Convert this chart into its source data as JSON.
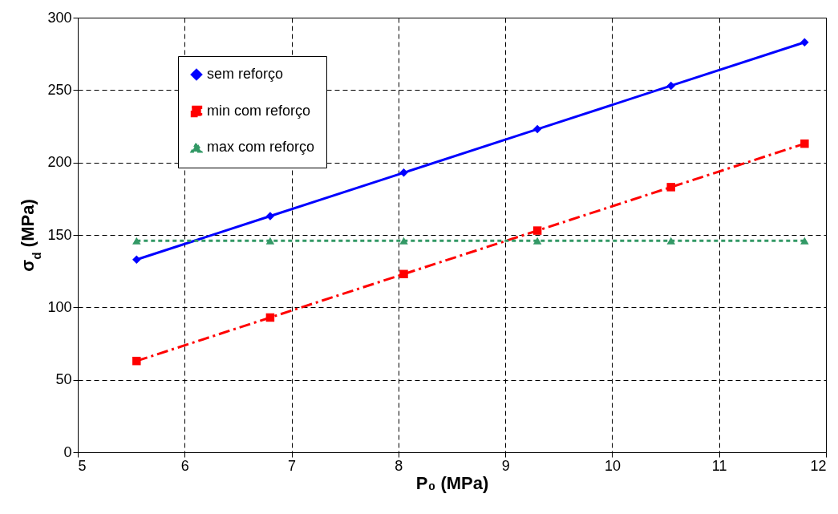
{
  "chart_data": {
    "type": "line",
    "xlabel": "P₀ (MPa)",
    "ylabel": "σ$_{d}$ (MPa)",
    "xlim": [
      5,
      12
    ],
    "xticks": [
      5,
      6,
      7,
      8,
      9,
      10,
      11,
      12
    ],
    "ylim": [
      0,
      300
    ],
    "yticks": [
      0,
      50,
      100,
      150,
      200,
      250,
      300
    ],
    "grid": true,
    "legend": "top left",
    "series": [
      {
        "name": "sem reforço",
        "color": "#0000ff",
        "marker": "diamond",
        "line_style": "solid",
        "x": [
          5.55,
          6.8,
          8.05,
          9.3,
          10.55,
          11.8
        ],
        "values": [
          133,
          163,
          193,
          223,
          253,
          283
        ]
      },
      {
        "name": "min com reforço",
        "color": "#ff0000",
        "marker": "square",
        "line_style": "dashed",
        "x": [
          5.55,
          6.8,
          8.05,
          9.3,
          10.55,
          11.8
        ],
        "values": [
          63,
          93,
          123,
          153,
          183,
          213
        ]
      },
      {
        "name": "max com reforço",
        "color": "#339966",
        "marker": "triangle",
        "line_style": "dotted",
        "x": [
          5.55,
          6.8,
          8.05,
          9.3,
          10.55,
          11.8
        ],
        "values": [
          146,
          146,
          146,
          146,
          146,
          146
        ]
      }
    ]
  }
}
